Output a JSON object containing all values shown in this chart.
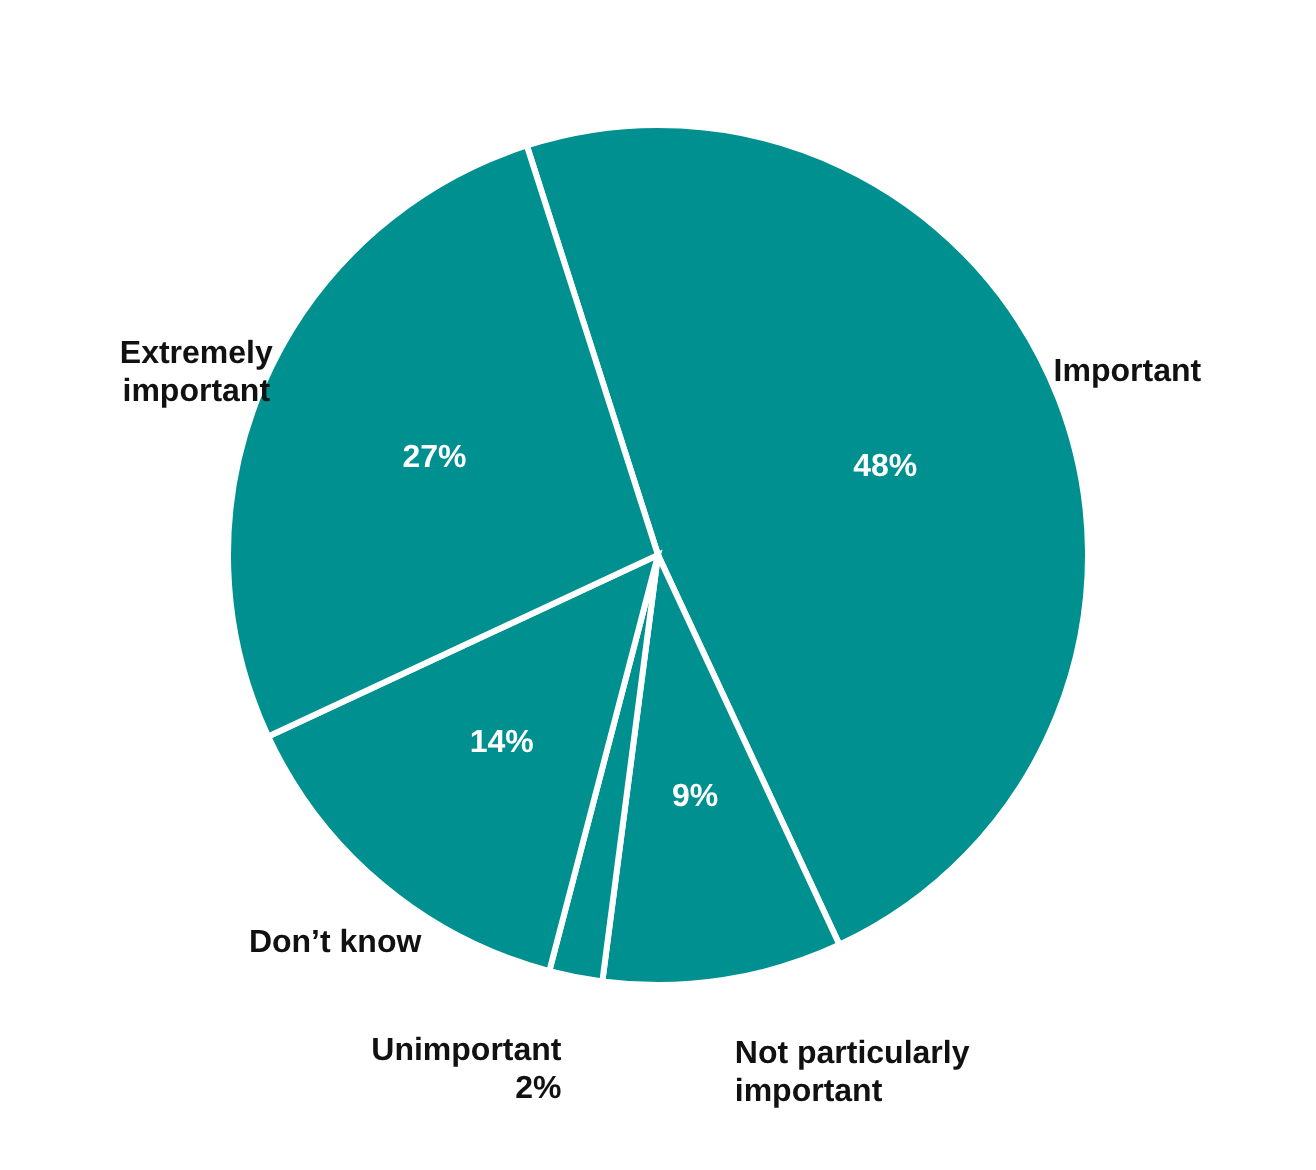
{
  "chart_data": {
    "type": "pie",
    "categories": [
      "Important",
      "Not particularly important",
      "Unimportant",
      "Don’t know",
      "Extremely important"
    ],
    "values": [
      48,
      9,
      2,
      14,
      27
    ],
    "value_labels": [
      "48%",
      "9%",
      "2%",
      "14%",
      "27%"
    ],
    "colors": [
      "#009090",
      "#009090",
      "#009090",
      "#009090",
      "#009090"
    ]
  }
}
